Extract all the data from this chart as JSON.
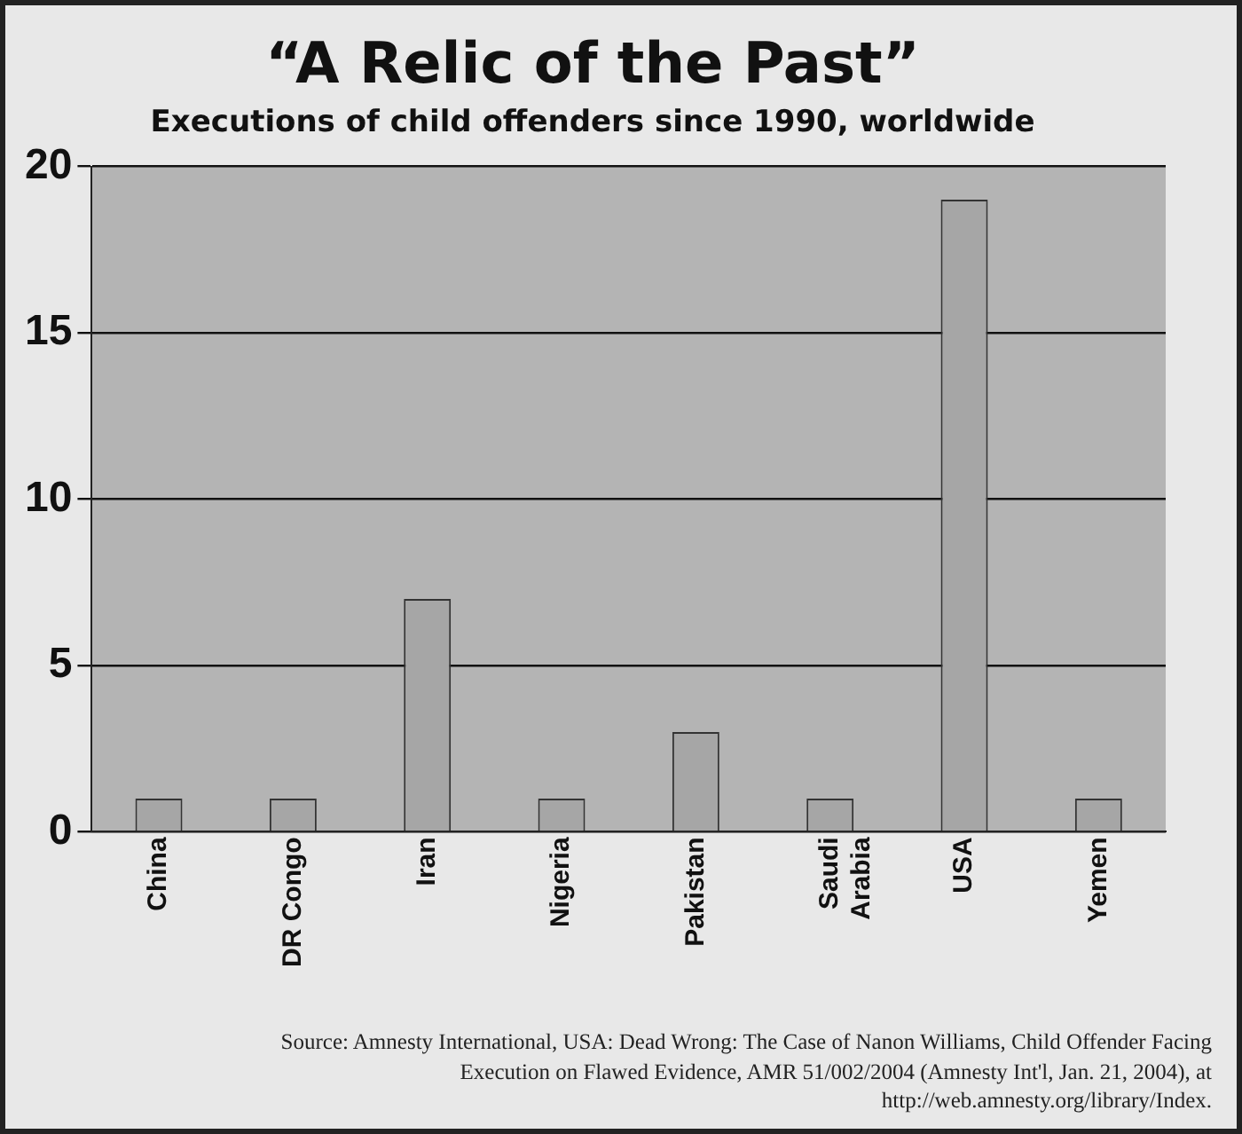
{
  "chart_data": {
    "type": "bar",
    "title": "“A Relic of the Past”",
    "subtitle": "Executions of child offenders since 1990, worldwide",
    "categories": [
      "China",
      "DR Congo",
      "Iran",
      "Nigeria",
      "Pakistan",
      "Saudi Arabia",
      "USA",
      "Yemen"
    ],
    "values": [
      1,
      1,
      7,
      1,
      3,
      1,
      19,
      1
    ],
    "color": "#a6a6a6",
    "ylim": [
      0,
      20
    ],
    "yticks": [
      0,
      5,
      10,
      15,
      20
    ],
    "grid": "y",
    "legend": false,
    "annotations": [
      "Source: Amnesty International, USA: Dead Wrong: The Case of Nanon Williams, Child Offender Facing Execution on Flawed Evidence, AMR 51/002/2004 (Amnesty Int'l, Jan. 21, 2004), at http://web.amnesty.org/library/Index."
    ]
  }
}
